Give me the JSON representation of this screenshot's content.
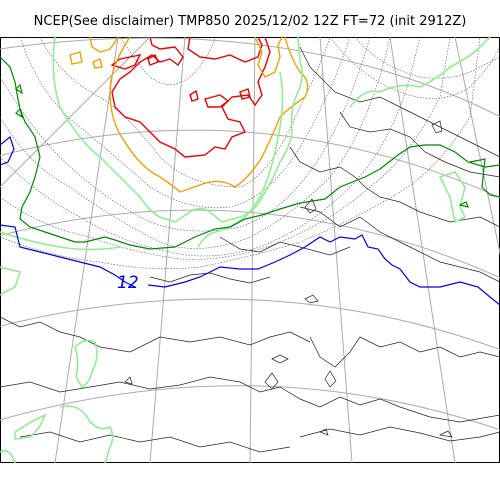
{
  "title": "NCEP(See disclaimer) TMP850 2025/12/02 12Z FT=72 (init 2912Z)",
  "contour_labels": [
    {
      "value": "12",
      "color": "#0000ee"
    }
  ],
  "colors": {
    "coast": "#222222",
    "grid": "#aaaaaa",
    "dotted_contour": "#555555",
    "red_contour": "#ee0000",
    "orange_contour": "#f0a000",
    "lightgreen_contour": "#90ee90",
    "green_contour": "#008800",
    "blue_contour": "#0000ee"
  }
}
